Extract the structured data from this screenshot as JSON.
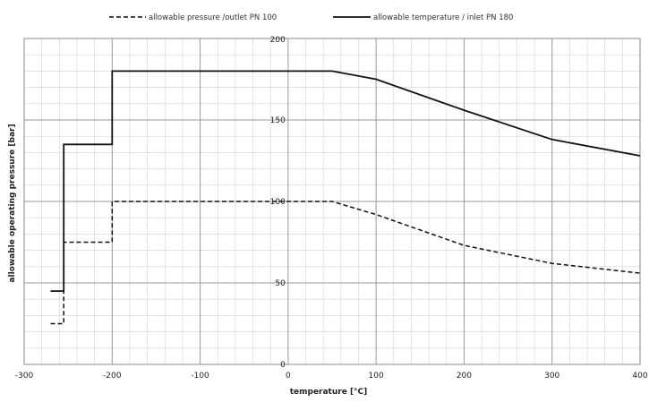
{
  "chart_data": {
    "type": "line",
    "title": "",
    "xlabel": "temperature [°C]",
    "ylabel": "allowable operating pressure [bar]",
    "xlim": [
      -300,
      400
    ],
    "ylim": [
      0,
      200
    ],
    "x_ticks": [
      -300,
      -200,
      -100,
      0,
      100,
      200,
      300,
      400
    ],
    "x_tick_labels": [
      "-300",
      "-200",
      "-100",
      "0",
      "100",
      "200",
      "300",
      "400"
    ],
    "y_axis_labels": [
      {
        "value": 0,
        "label": "0"
      },
      {
        "value": 50,
        "label": "50"
      },
      {
        "value": 100,
        "label": "100"
      },
      {
        "value": 150,
        "label": "150"
      },
      {
        "value": 200,
        "label": "200"
      }
    ],
    "major_grid": {
      "x_step": 100,
      "y_step": 50
    },
    "minor_grid": {
      "x_step": 20,
      "y_step": 10
    },
    "grid": true,
    "legend_position": "top",
    "series": [
      {
        "name": "allowable pressure /outlet PN 100",
        "style": "dashed",
        "color": "#111111",
        "points": [
          [
            -270,
            25
          ],
          [
            -255,
            25
          ],
          [
            -255,
            75
          ],
          [
            -200,
            75
          ],
          [
            -200,
            100
          ],
          [
            50,
            100
          ],
          [
            100,
            92
          ],
          [
            200,
            73
          ],
          [
            300,
            62
          ],
          [
            400,
            56
          ]
        ]
      },
      {
        "name": "allowable temperature / inlet PN 180",
        "style": "solid",
        "color": "#111111",
        "points": [
          [
            -270,
            45
          ],
          [
            -255,
            45
          ],
          [
            -255,
            135
          ],
          [
            -200,
            135
          ],
          [
            -200,
            180
          ],
          [
            50,
            180
          ],
          [
            100,
            175
          ],
          [
            200,
            156
          ],
          [
            300,
            138
          ],
          [
            400,
            128
          ]
        ]
      }
    ]
  }
}
